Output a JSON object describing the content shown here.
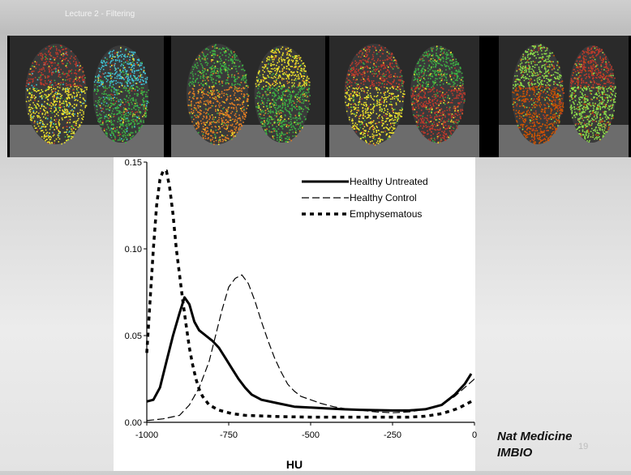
{
  "header": {
    "lecture_label": "Lecture 2 - Filtering"
  },
  "scans": [
    {
      "name": "scan-panel-1",
      "colors": [
        "#c0392b",
        "#f1e62a",
        "#40c4d8",
        "#3cb043"
      ]
    },
    {
      "name": "scan-panel-2",
      "colors": [
        "#3cb043",
        "#e67e22",
        "#f1e62a"
      ]
    },
    {
      "name": "scan-panel-3",
      "colors": [
        "#c0392b",
        "#f1e62a",
        "#3cb043"
      ]
    },
    {
      "name": "scan-panel-4",
      "colors": [
        "#8ee04a",
        "#d35400",
        "#c0392b"
      ]
    }
  ],
  "chart_data": {
    "type": "line",
    "title": "",
    "xlabel": "HU",
    "ylabel": "",
    "xlim": [
      -1000,
      0
    ],
    "ylim": [
      0,
      0.15
    ],
    "x_ticks": [
      -1000,
      -750,
      -500,
      -250,
      0
    ],
    "x_tick_labels": [
      "-1000",
      "-750",
      "-500",
      "-250",
      "0"
    ],
    "y_ticks": [
      0,
      0.05,
      0.1,
      0.15
    ],
    "y_tick_labels": [
      "0.00",
      "0.05",
      "0.10",
      "0.15"
    ],
    "legend_position": "top-right",
    "grid": false,
    "series": [
      {
        "name": "Healthy Untreated",
        "style": "solid-thick",
        "points": [
          [
            -1000,
            0.012
          ],
          [
            -980,
            0.013
          ],
          [
            -960,
            0.02
          ],
          [
            -940,
            0.035
          ],
          [
            -920,
            0.05
          ],
          [
            -900,
            0.063
          ],
          [
            -885,
            0.072
          ],
          [
            -870,
            0.068
          ],
          [
            -855,
            0.058
          ],
          [
            -840,
            0.053
          ],
          [
            -820,
            0.05
          ],
          [
            -800,
            0.047
          ],
          [
            -780,
            0.043
          ],
          [
            -760,
            0.037
          ],
          [
            -740,
            0.031
          ],
          [
            -720,
            0.025
          ],
          [
            -700,
            0.02
          ],
          [
            -680,
            0.016
          ],
          [
            -650,
            0.013
          ],
          [
            -600,
            0.011
          ],
          [
            -550,
            0.009
          ],
          [
            -500,
            0.0085
          ],
          [
            -450,
            0.008
          ],
          [
            -400,
            0.0075
          ],
          [
            -350,
            0.0072
          ],
          [
            -300,
            0.007
          ],
          [
            -250,
            0.0068
          ],
          [
            -200,
            0.0068
          ],
          [
            -150,
            0.0075
          ],
          [
            -100,
            0.01
          ],
          [
            -60,
            0.016
          ],
          [
            -30,
            0.022
          ],
          [
            -10,
            0.028
          ]
        ]
      },
      {
        "name": "Healthy Control",
        "style": "dashed-thin",
        "points": [
          [
            -1000,
            0.001
          ],
          [
            -950,
            0.002
          ],
          [
            -900,
            0.004
          ],
          [
            -870,
            0.01
          ],
          [
            -840,
            0.02
          ],
          [
            -810,
            0.035
          ],
          [
            -790,
            0.05
          ],
          [
            -770,
            0.065
          ],
          [
            -750,
            0.078
          ],
          [
            -730,
            0.083
          ],
          [
            -710,
            0.085
          ],
          [
            -690,
            0.08
          ],
          [
            -670,
            0.07
          ],
          [
            -650,
            0.058
          ],
          [
            -630,
            0.047
          ],
          [
            -610,
            0.037
          ],
          [
            -590,
            0.029
          ],
          [
            -570,
            0.022
          ],
          [
            -550,
            0.018
          ],
          [
            -530,
            0.015
          ],
          [
            -500,
            0.013
          ],
          [
            -470,
            0.011
          ],
          [
            -430,
            0.009
          ],
          [
            -400,
            0.008
          ],
          [
            -350,
            0.007
          ],
          [
            -300,
            0.006
          ],
          [
            -250,
            0.0055
          ],
          [
            -200,
            0.006
          ],
          [
            -150,
            0.0075
          ],
          [
            -100,
            0.01
          ],
          [
            -60,
            0.015
          ],
          [
            -30,
            0.02
          ],
          [
            0,
            0.025
          ]
        ]
      },
      {
        "name": "Emphysematous",
        "style": "dotted-thick",
        "points": [
          [
            -1000,
            0.04
          ],
          [
            -990,
            0.07
          ],
          [
            -980,
            0.1
          ],
          [
            -970,
            0.125
          ],
          [
            -960,
            0.14
          ],
          [
            -950,
            0.145
          ],
          [
            -940,
            0.145
          ],
          [
            -930,
            0.135
          ],
          [
            -920,
            0.12
          ],
          [
            -910,
            0.1
          ],
          [
            -900,
            0.085
          ],
          [
            -890,
            0.07
          ],
          [
            -880,
            0.056
          ],
          [
            -870,
            0.043
          ],
          [
            -860,
            0.033
          ],
          [
            -850,
            0.025
          ],
          [
            -840,
            0.019
          ],
          [
            -830,
            0.015
          ],
          [
            -810,
            0.01
          ],
          [
            -780,
            0.007
          ],
          [
            -740,
            0.005
          ],
          [
            -700,
            0.004
          ],
          [
            -600,
            0.0033
          ],
          [
            -500,
            0.003
          ],
          [
            -400,
            0.003
          ],
          [
            -300,
            0.003
          ],
          [
            -200,
            0.003
          ],
          [
            -150,
            0.0035
          ],
          [
            -100,
            0.005
          ],
          [
            -50,
            0.008
          ],
          [
            0,
            0.013
          ]
        ]
      }
    ]
  },
  "citation": {
    "line1": "Nat Medicine",
    "line2": "IMBIO"
  },
  "page_number": "19"
}
